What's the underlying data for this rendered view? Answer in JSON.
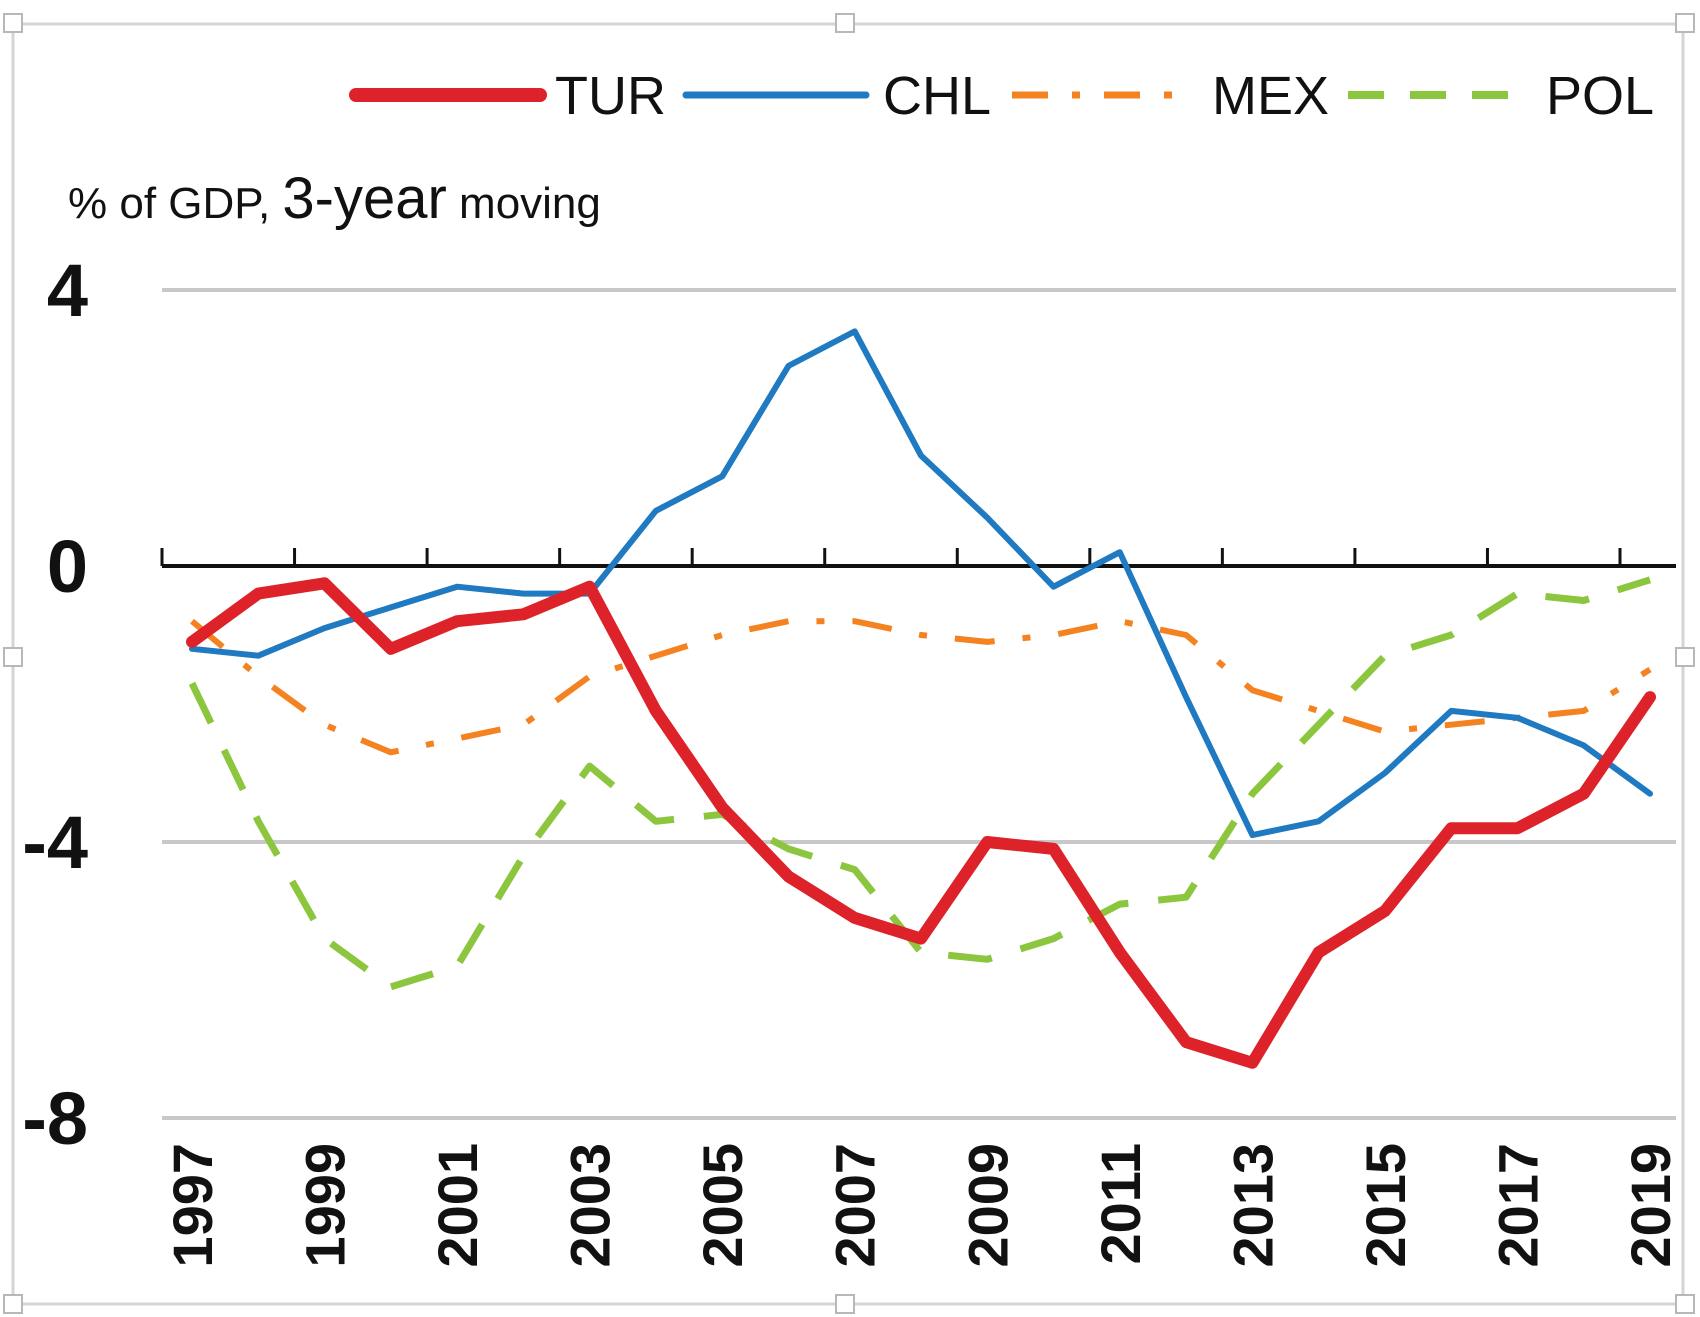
{
  "chart_data": {
    "type": "line",
    "ylabel": {
      "part1": "% of GDP, ",
      "part2": "3-year",
      "part3": " moving"
    },
    "ylim": [
      -8,
      4
    ],
    "yticks": [
      "4",
      "0",
      "-4",
      "-8"
    ],
    "ytick_values": [
      4,
      0,
      -4,
      -8
    ],
    "x_tick_labels": [
      "1997",
      "1999",
      "2001",
      "2003",
      "2005",
      "2007",
      "2009",
      "2011",
      "2013",
      "2015",
      "2017",
      "2019"
    ],
    "x": [
      1997,
      1998,
      1999,
      2000,
      2001,
      2002,
      2003,
      2004,
      2005,
      2006,
      2007,
      2008,
      2009,
      2010,
      2011,
      2012,
      2013,
      2014,
      2015,
      2016,
      2017,
      2018,
      2019
    ],
    "legend_position": "top",
    "grid": true,
    "series": [
      {
        "name": "TUR",
        "color": "#dd2329",
        "style": "solid",
        "values": [
          -1.1,
          -0.4,
          -0.25,
          -1.2,
          -0.8,
          -0.7,
          -0.3,
          -2.1,
          -3.5,
          -4.5,
          -5.1,
          -5.4,
          -4.0,
          -4.1,
          -5.6,
          -6.9,
          -7.2,
          -5.6,
          -5.0,
          -3.8,
          -3.8,
          -3.3,
          -1.9
        ]
      },
      {
        "name": "CHL",
        "color": "#1f7ac1",
        "style": "solid",
        "values": [
          -1.2,
          -1.3,
          -0.9,
          -0.6,
          -0.3,
          -0.4,
          -0.4,
          0.8,
          1.3,
          2.9,
          3.4,
          1.6,
          0.7,
          -0.3,
          0.2,
          -1.9,
          -3.9,
          -3.7,
          -3.0,
          -2.1,
          -2.2,
          -2.6,
          -3.3
        ]
      },
      {
        "name": "MEX",
        "color": "#f58220",
        "style": "dashdot",
        "values": [
          -0.8,
          -1.6,
          -2.3,
          -2.7,
          -2.5,
          -2.3,
          -1.6,
          -1.3,
          -1.0,
          -0.8,
          -0.8,
          -1.0,
          -1.1,
          -1.0,
          -0.8,
          -1.0,
          -1.8,
          -2.1,
          -2.4,
          -2.3,
          -2.2,
          -2.1,
          -1.5
        ]
      },
      {
        "name": "POL",
        "color": "#8cc63f",
        "style": "dashed",
        "values": [
          -1.7,
          -3.7,
          -5.4,
          -6.1,
          -5.8,
          -4.2,
          -2.9,
          -3.7,
          -3.6,
          -4.1,
          -4.4,
          -5.6,
          -5.7,
          -5.4,
          -4.9,
          -4.8,
          -3.3,
          -2.3,
          -1.3,
          -1.0,
          -0.4,
          -0.5,
          -0.2
        ]
      }
    ]
  }
}
